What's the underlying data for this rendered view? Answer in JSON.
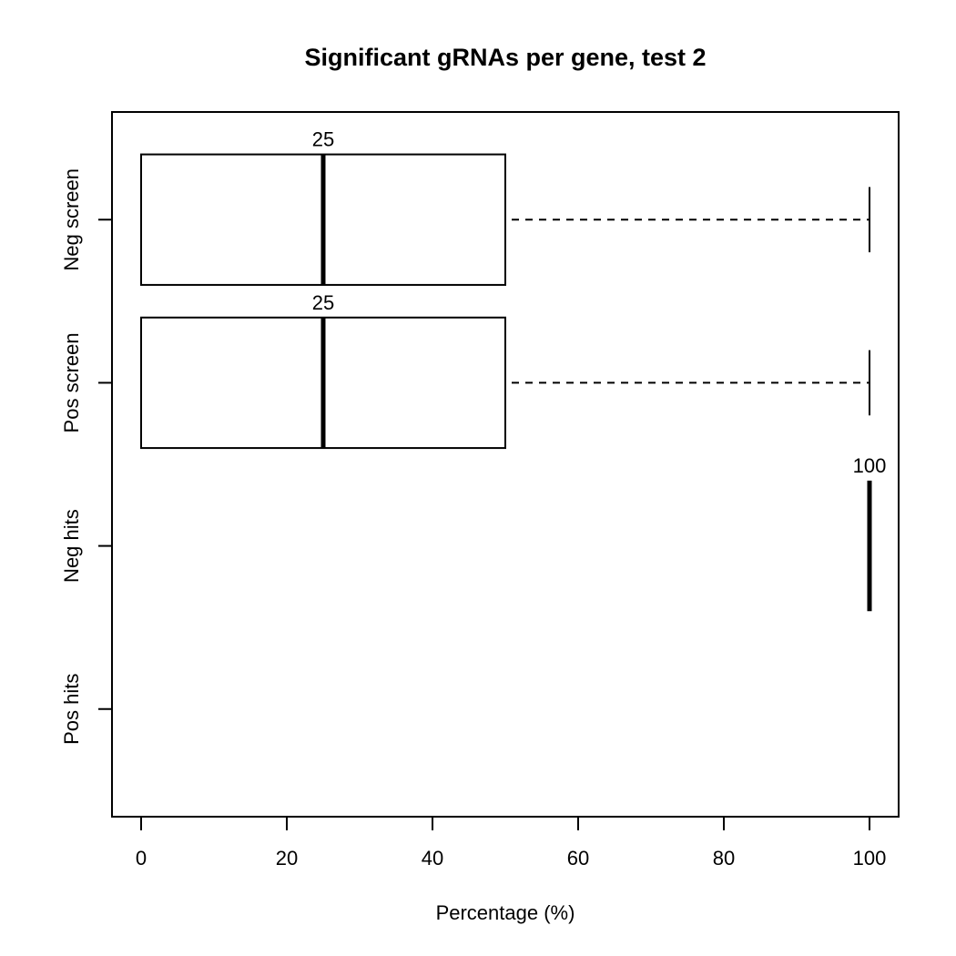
{
  "chart_data": {
    "type": "boxplot",
    "orientation": "horizontal",
    "title": "Significant gRNAs per gene, test 2",
    "xlabel": "Percentage (%)",
    "xlim": [
      -4,
      104
    ],
    "xticks": [
      0,
      20,
      40,
      60,
      80,
      100
    ],
    "categories": [
      "Neg screen",
      "Pos screen",
      "Neg hits",
      "Pos hits"
    ],
    "series": [
      {
        "category": "Neg screen",
        "min": 0,
        "q1": 0,
        "median": 25,
        "q3": 50,
        "max": 100,
        "label": "25"
      },
      {
        "category": "Pos screen",
        "min": 0,
        "q1": 0,
        "median": 25,
        "q3": 50,
        "max": 100,
        "label": "25"
      },
      {
        "category": "Neg hits",
        "min": 100,
        "q1": 100,
        "median": 100,
        "q3": 100,
        "max": 100,
        "label": "100"
      },
      {
        "category": "Pos hits",
        "empty": true
      }
    ],
    "grid": false,
    "legend": "none"
  }
}
